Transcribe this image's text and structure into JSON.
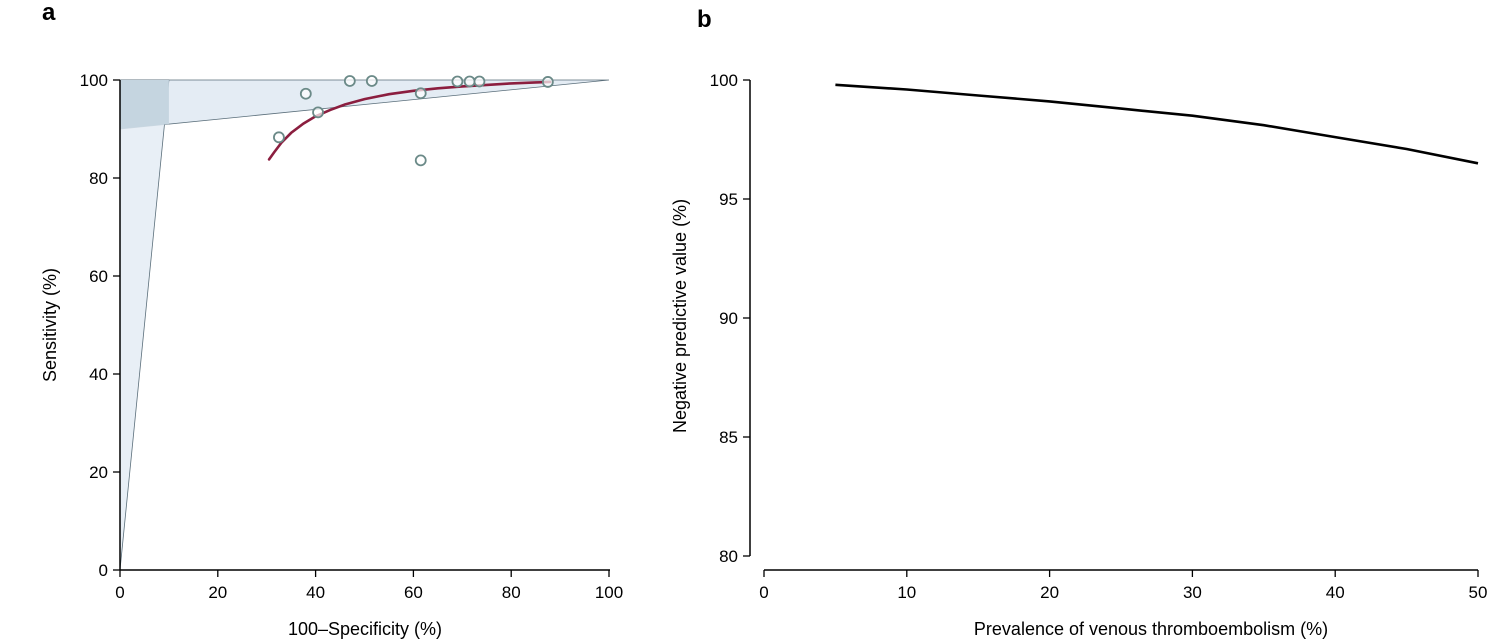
{
  "chart_data": [
    {
      "panel": "a",
      "type": "scatter",
      "xlabel": "100–Specificity (%)",
      "ylabel": "Sensitivity (%)",
      "xlim": [
        0,
        100
      ],
      "ylim": [
        0,
        100
      ],
      "x_ticks": [
        "0",
        "20",
        "40",
        "60",
        "80",
        "100"
      ],
      "y_ticks": [
        "0",
        "20",
        "40",
        "60",
        "80",
        "100"
      ],
      "points": [
        {
          "x": 32.5,
          "y": 88.3
        },
        {
          "x": 38,
          "y": 97.2
        },
        {
          "x": 40.5,
          "y": 93.4
        },
        {
          "x": 47,
          "y": 99.8
        },
        {
          "x": 51.5,
          "y": 99.8
        },
        {
          "x": 61.5,
          "y": 83.6
        },
        {
          "x": 61.5,
          "y": 97.3
        },
        {
          "x": 69,
          "y": 99.7
        },
        {
          "x": 71.5,
          "y": 99.7
        },
        {
          "x": 73.5,
          "y": 99.7
        },
        {
          "x": 87.5,
          "y": 99.6
        }
      ],
      "fitted_curve": [
        [
          30.5,
          83.8
        ],
        [
          31.5,
          85.2
        ],
        [
          33,
          87.2
        ],
        [
          35,
          89.2
        ],
        [
          37.5,
          91.1
        ],
        [
          40,
          92.6
        ],
        [
          43,
          93.9
        ],
        [
          46,
          95.0
        ],
        [
          50,
          96.1
        ],
        [
          55,
          97.1
        ],
        [
          60,
          97.8
        ],
        [
          65,
          98.3
        ],
        [
          70,
          98.7
        ],
        [
          75,
          99.0
        ],
        [
          80,
          99.3
        ],
        [
          85,
          99.5
        ],
        [
          88,
          99.6
        ]
      ],
      "shaded_region_1": [
        [
          0,
          100
        ],
        [
          100,
          100
        ],
        [
          0,
          90
        ]
      ],
      "shaded_region_2": [
        [
          0,
          0
        ],
        [
          0,
          100
        ],
        [
          10,
          100
        ]
      ],
      "colors": {
        "fit": "#8b1e3f",
        "marker": "#6b8a88",
        "region": "#e4ecf4",
        "overlap": "#c5d5e0",
        "region_edge": "#5a6e7a"
      },
      "grid": false,
      "legend": "none"
    },
    {
      "panel": "b",
      "type": "line",
      "xlabel": "Prevalence of venous thromboembolism (%)",
      "ylabel": "Negative predictive value (%)",
      "xlim": [
        0,
        50
      ],
      "ylim": [
        80,
        100
      ],
      "x_ticks": [
        "0",
        "10",
        "20",
        "30",
        "40",
        "50"
      ],
      "y_ticks": [
        "80",
        "85",
        "90",
        "95",
        "100"
      ],
      "x": [
        5,
        10,
        15,
        20,
        25,
        30,
        35,
        40,
        45,
        50
      ],
      "y": [
        99.8,
        99.6,
        99.35,
        99.1,
        98.8,
        98.5,
        98.1,
        97.6,
        97.1,
        96.5
      ],
      "colors": {
        "line": "#000000"
      },
      "grid": false,
      "legend": "none"
    }
  ]
}
